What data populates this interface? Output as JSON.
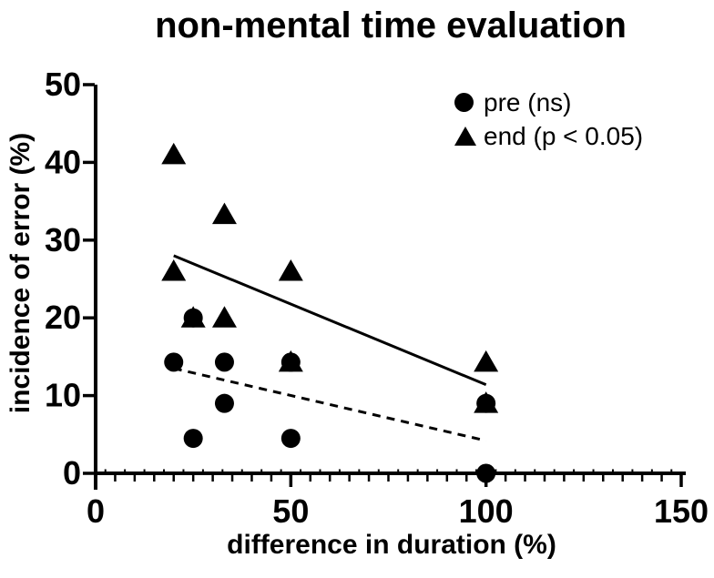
{
  "title": "non-mental time evaluation",
  "axes": {
    "x_label": "difference in duration (%)",
    "y_label": "incidence of error (%)"
  },
  "legend": {
    "items": [
      {
        "label": "pre (ns)",
        "marker": "circle"
      },
      {
        "label": "end (p < 0.05)",
        "marker": "triangle"
      }
    ]
  },
  "colors": {
    "foreground": "#000000",
    "background": "#ffffff"
  },
  "chart_data": {
    "type": "scatter",
    "title": "non-mental time evaluation",
    "xlabel": "difference in duration (%)",
    "ylabel": "incidence of error (%)",
    "xlim": [
      0,
      150
    ],
    "ylim": [
      0,
      50
    ],
    "x_major_ticks": [
      0,
      50,
      100,
      150
    ],
    "x_minor_tick_step": 5,
    "x_half_tick_step": 2.5,
    "y_major_ticks": [
      0,
      10,
      20,
      30,
      40,
      50
    ],
    "grid": false,
    "legend_position": "top-right",
    "series": [
      {
        "name": "pre (ns)",
        "marker": "circle",
        "points": [
          [
            20,
            14.3
          ],
          [
            25,
            20
          ],
          [
            25,
            4.5
          ],
          [
            33,
            14.3
          ],
          [
            33,
            9
          ],
          [
            50,
            14.3
          ],
          [
            50,
            4.5
          ],
          [
            100,
            9
          ],
          [
            100,
            0
          ]
        ],
        "trend_line": {
          "style": "dashed",
          "from": [
            20,
            13.5
          ],
          "to": [
            100,
            4.2
          ]
        }
      },
      {
        "name": "end (p < 0.05)",
        "marker": "triangle",
        "points": [
          [
            20,
            41
          ],
          [
            20,
            26
          ],
          [
            25,
            20
          ],
          [
            33,
            33.3
          ],
          [
            33,
            20
          ],
          [
            50,
            26
          ],
          [
            50,
            14.3
          ],
          [
            100,
            14.3
          ],
          [
            100,
            9
          ]
        ],
        "trend_line": {
          "style": "solid",
          "from": [
            20,
            28
          ],
          "to": [
            100,
            11.4
          ]
        }
      }
    ]
  }
}
